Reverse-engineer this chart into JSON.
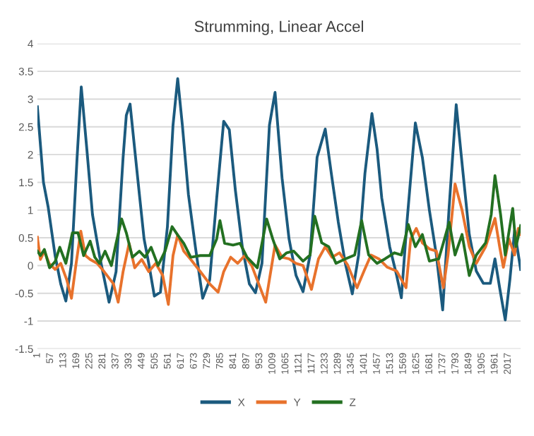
{
  "chart_data": {
    "type": "line",
    "title": "Strumming, Linear Accel",
    "xlim": [
      1,
      2071
    ],
    "ylim": [
      -1.5,
      4
    ],
    "xticks": [
      1,
      57,
      113,
      169,
      225,
      281,
      337,
      393,
      449,
      505,
      561,
      617,
      673,
      729,
      785,
      841,
      897,
      953,
      1009,
      1065,
      1121,
      1177,
      1233,
      1289,
      1345,
      1401,
      1457,
      1513,
      1569,
      1625,
      1681,
      1737,
      1793,
      1849,
      1905,
      1961,
      2017
    ],
    "yticks": [
      -1.5,
      -1,
      -0.5,
      0,
      0.5,
      1,
      1.5,
      2,
      2.5,
      3,
      3.5,
      4
    ],
    "grid": "y",
    "legend": "bottom",
    "marker": "none",
    "line_style": "solid",
    "series": [
      {
        "name": "X",
        "color": "#1b5a7e",
        "x": [
          1,
          27,
          47,
          77,
          101,
          123,
          147,
          171,
          189,
          213,
          237,
          267,
          308,
          338,
          368,
          382,
          398,
          418,
          438,
          458,
          478,
          502,
          528,
          558,
          582,
          602,
          622,
          648,
          678,
          709,
          739,
          769,
          799,
          823,
          849,
          879,
          909,
          935,
          963,
          995,
          1019,
          1049,
          1079,
          1109,
          1139,
          1169,
          1199,
          1234,
          1260,
          1290,
          1320,
          1350,
          1377,
          1404,
          1434,
          1456,
          1476,
          1510,
          1540,
          1560,
          1584,
          1620,
          1650,
          1680,
          1710,
          1737,
          1765,
          1795,
          1821,
          1851,
          1881,
          1911,
          1941,
          1961,
          1981,
          2005,
          2025,
          2045,
          2071
        ],
        "values": [
          2.86,
          1.5,
          1.06,
          0.18,
          -0.33,
          -0.64,
          0.04,
          1.94,
          3.22,
          2.09,
          0.92,
          0.18,
          -0.66,
          -0.11,
          1.94,
          2.71,
          2.91,
          2.09,
          1.28,
          0.48,
          0.04,
          -0.55,
          -0.48,
          0.7,
          2.53,
          3.37,
          2.53,
          1.28,
          0.33,
          -0.59,
          -0.26,
          1.21,
          2.6,
          2.45,
          1.36,
          0.33,
          -0.33,
          -0.49,
          0.04,
          2.53,
          3.12,
          1.58,
          0.48,
          -0.18,
          -0.47,
          0.19,
          1.95,
          2.46,
          1.66,
          0.78,
          0.04,
          -0.51,
          0.19,
          1.66,
          2.74,
          2.1,
          1.22,
          0.34,
          -0.18,
          -0.58,
          0.78,
          2.57,
          1.95,
          1.0,
          0.19,
          -0.8,
          1.07,
          2.9,
          1.8,
          0.56,
          -0.1,
          -0.32,
          -0.32,
          0.12,
          -0.4,
          -0.98,
          -0.25,
          0.63,
          -0.07
        ]
      },
      {
        "name": "Y",
        "color": "#e8722c",
        "x": [
          1,
          14,
          31,
          51,
          77,
          101,
          127,
          147,
          167,
          187,
          207,
          227,
          257,
          287,
          327,
          347,
          368,
          394,
          418,
          448,
          478,
          508,
          538,
          562,
          582,
          602,
          628,
          658,
          699,
          739,
          775,
          799,
          829,
          859,
          889,
          919,
          949,
          979,
          1019,
          1049,
          1079,
          1109,
          1139,
          1175,
          1205,
          1234,
          1263,
          1295,
          1330,
          1370,
          1400,
          1430,
          1464,
          1500,
          1540,
          1580,
          1600,
          1624,
          1650,
          1680,
          1710,
          1740,
          1760,
          1790,
          1820,
          1851,
          1881,
          1921,
          1961,
          1981,
          1997,
          2021,
          2045,
          2061,
          2071
        ],
        "values": [
          0.51,
          0.11,
          0.26,
          0.04,
          -0.07,
          0.04,
          -0.26,
          -0.59,
          0.04,
          0.62,
          0.18,
          0.11,
          0.04,
          -0.11,
          -0.33,
          -0.66,
          -0.11,
          0.4,
          -0.04,
          0.11,
          -0.11,
          0.04,
          -0.18,
          -0.7,
          0.18,
          0.55,
          0.26,
          0.11,
          -0.11,
          -0.33,
          -0.48,
          -0.11,
          0.15,
          0.04,
          0.18,
          0,
          -0.33,
          -0.66,
          0.37,
          0.15,
          0.12,
          0.04,
          0,
          -0.43,
          0.12,
          0.34,
          0.15,
          0.23,
          0.01,
          -0.4,
          -0.1,
          0.19,
          0.12,
          -0.03,
          -0.1,
          -0.4,
          0.48,
          0.67,
          0.41,
          0.3,
          0.26,
          -0.4,
          0.19,
          1.47,
          1.0,
          0.34,
          0.04,
          0.34,
          0.85,
          0.34,
          -0.03,
          0.48,
          0.19,
          0.67,
          0.56
        ]
      },
      {
        "name": "Z",
        "color": "#237021",
        "x": [
          1,
          14,
          31,
          53,
          77,
          97,
          123,
          151,
          175,
          199,
          227,
          247,
          267,
          291,
          318,
          338,
          362,
          382,
          408,
          438,
          462,
          488,
          518,
          548,
          578,
          602,
          628,
          658,
          699,
          739,
          769,
          783,
          803,
          839,
          869,
          899,
          943,
          983,
          1009,
          1039,
          1069,
          1099,
          1139,
          1169,
          1189,
          1219,
          1249,
          1280,
          1320,
          1360,
          1390,
          1420,
          1456,
          1490,
          1530,
          1560,
          1590,
          1620,
          1650,
          1680,
          1720,
          1740,
          1765,
          1790,
          1820,
          1851,
          1881,
          1921,
          1945,
          1961,
          1985,
          2005,
          2037,
          2051,
          2071
        ],
        "values": [
          0.26,
          0.18,
          0.29,
          -0.04,
          0.07,
          0.33,
          0.04,
          0.59,
          0.59,
          0.18,
          0.44,
          0.15,
          0.04,
          0.26,
          0,
          0.4,
          0.84,
          0.59,
          0.15,
          0.26,
          0.15,
          0.33,
          0,
          0.26,
          0.7,
          0.55,
          0.4,
          0.15,
          0.18,
          0.18,
          0.48,
          0.81,
          0.4,
          0.37,
          0.4,
          0.15,
          -0.04,
          0.84,
          0.48,
          0.12,
          0.23,
          0.26,
          0.08,
          0.19,
          0.89,
          0.41,
          0.34,
          0.04,
          0.12,
          0.19,
          0.81,
          0.19,
          0.04,
          0.12,
          0.23,
          0.19,
          0.74,
          0.34,
          0.56,
          0.08,
          0.12,
          0.41,
          0.78,
          0.19,
          0.56,
          -0.18,
          0.19,
          0.41,
          0.92,
          1.62,
          0.92,
          0.19,
          1.03,
          0.34,
          0.72
        ]
      }
    ]
  }
}
